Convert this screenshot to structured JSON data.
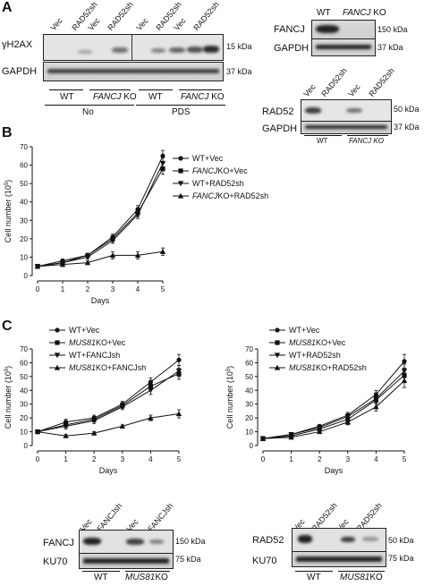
{
  "panels": {
    "a": "A",
    "b": "B",
    "c": "C"
  },
  "panel_a": {
    "blot1": {
      "lanes": [
        "Vec",
        "RAD52sh",
        "Vec",
        "RAD52sh",
        "Vec",
        "RAD52sh",
        "Vec",
        "RAD52sh"
      ],
      "row1_label": "γH2AX",
      "row2_label": "GAPDH",
      "marker1": "15 kDa",
      "marker2": "37 kDa",
      "groups": [
        {
          "wt": "WT",
          "ko_gene": "FANCJ",
          "ko_suffix": " KO",
          "condition": "No"
        },
        {
          "wt": "WT",
          "ko_gene": "FANCJ",
          "ko_suffix": " KO",
          "condition": "PDS"
        }
      ]
    },
    "blot2": {
      "lanes": [
        "WT",
        "FANCJ",
        "KO"
      ],
      "row1_label": "FANCJ",
      "row2_label": "GAPDH",
      "marker1": "150 kDa",
      "marker2": "37 kDa"
    },
    "blot3": {
      "lanes": [
        "Vec",
        "RAD52sh",
        "Vec",
        "RAD52sh"
      ],
      "row1_label": "RAD52",
      "row2_label": "GAPDH",
      "marker1": "50 kDa",
      "marker2": "37 kDa",
      "group_wt": "WT",
      "group_ko": "FANCJ KO"
    }
  },
  "chart_data": [
    {
      "type": "line",
      "panel": "B",
      "xlabel": "Days",
      "ylabel": "Cell number (10",
      "ylabel_exp": "5",
      "ylabel_end": ")",
      "x": [
        0,
        1,
        2,
        3,
        4,
        5
      ],
      "xlim": [
        0,
        5
      ],
      "ylim": [
        0,
        70
      ],
      "yticks": [
        0,
        10,
        20,
        30,
        40,
        50,
        60,
        70
      ],
      "series": [
        {
          "name_italic": "",
          "name": "WT+Vec",
          "marker": "circle",
          "values": [
            5,
            8,
            11,
            21,
            36,
            65
          ],
          "errors": [
            1,
            1,
            1,
            1.5,
            2,
            3
          ]
        },
        {
          "name_italic": "FANCJ",
          "name": "KO+Vec",
          "marker": "square",
          "values": [
            5,
            7,
            11,
            20,
            34,
            58
          ],
          "errors": [
            1,
            1,
            1,
            1.5,
            2,
            3
          ]
        },
        {
          "name_italic": "",
          "name": "WT+RAD52sh",
          "marker": "triangle-down",
          "values": [
            5,
            7,
            10,
            19,
            33,
            61
          ],
          "errors": [
            1,
            1,
            1,
            1.5,
            2,
            3
          ]
        },
        {
          "name_italic": "FANCJ",
          "name": "KO+RAD52sh",
          "marker": "triangle-up",
          "values": [
            5,
            6,
            7,
            11,
            11,
            13
          ],
          "errors": [
            1,
            1,
            1,
            2,
            2,
            2
          ]
        }
      ]
    },
    {
      "type": "line",
      "panel": "C-left",
      "xlabel": "Days",
      "ylabel": "Cell number (10",
      "ylabel_exp": "5",
      "ylabel_end": ")",
      "x": [
        0,
        1,
        2,
        3,
        4,
        5
      ],
      "xlim": [
        0,
        5
      ],
      "ylim": [
        0,
        70
      ],
      "yticks": [
        0,
        10,
        20,
        30,
        40,
        50,
        60,
        70
      ],
      "series": [
        {
          "name_italic": "",
          "name": "WT+Vec",
          "marker": "circle",
          "values": [
            10,
            17,
            20,
            30,
            46,
            62
          ],
          "errors": [
            1,
            2,
            2,
            2,
            3,
            4
          ]
        },
        {
          "name_italic": "MUS81",
          "name": "KO+Vec",
          "marker": "square",
          "values": [
            10,
            15,
            19,
            29,
            43,
            52
          ],
          "errors": [
            1,
            2,
            2,
            2,
            3,
            4
          ]
        },
        {
          "name_italic": "",
          "name": "WT+FANCJsh",
          "marker": "triangle-down",
          "values": [
            10,
            14,
            18,
            28,
            40,
            54
          ],
          "errors": [
            1,
            2,
            2,
            2,
            3,
            4
          ]
        },
        {
          "name_italic": "MUS81",
          "name": "KO+FANCJsh",
          "marker": "triangle-up",
          "values": [
            10,
            7,
            9,
            14,
            20,
            23
          ],
          "errors": [
            1,
            1,
            1,
            1,
            2,
            3
          ]
        }
      ]
    },
    {
      "type": "line",
      "panel": "C-right",
      "xlabel": "Days",
      "ylabel": "Cell number (10",
      "ylabel_exp": "5",
      "ylabel_end": ")",
      "x": [
        0,
        1,
        2,
        3,
        4,
        5
      ],
      "xlim": [
        0,
        5
      ],
      "ylim": [
        0,
        70
      ],
      "yticks": [
        0,
        10,
        20,
        30,
        40,
        50,
        60,
        70
      ],
      "series": [
        {
          "name_italic": "",
          "name": "WT+Vec",
          "marker": "circle",
          "values": [
            5,
            8,
            14,
            22,
            37,
            61
          ],
          "errors": [
            1,
            1,
            1,
            2,
            3,
            5
          ]
        },
        {
          "name_italic": "MUS81",
          "name": "KO+Vec",
          "marker": "square",
          "values": [
            5,
            7,
            12,
            19,
            33,
            51
          ],
          "errors": [
            1,
            1,
            1,
            2,
            3,
            5
          ]
        },
        {
          "name_italic": "",
          "name": "WT+RAD52sh",
          "marker": "triangle-down",
          "values": [
            5,
            8,
            13,
            21,
            34,
            54
          ],
          "errors": [
            1,
            1,
            1,
            2,
            3,
            5
          ]
        },
        {
          "name_italic": "MUS81",
          "name": "KO+RAD52sh",
          "marker": "triangle-up",
          "values": [
            5,
            6,
            10,
            17,
            28,
            47
          ],
          "errors": [
            1,
            1,
            1,
            2,
            3,
            5
          ]
        }
      ]
    }
  ],
  "panel_c_blots": {
    "left": {
      "lanes": [
        "Vec",
        "FANCJsh",
        "Vec",
        "FANCJsh"
      ],
      "row1_label": "FANCJ",
      "row2_label": "KU70",
      "marker1": "150 kDa",
      "marker2": "75 kDa",
      "group_wt": "WT",
      "group_ko_gene": "MUS81",
      "group_ko_suffix": "KO"
    },
    "right": {
      "lanes": [
        "Vec",
        "RAD52sh",
        "Vec",
        "RAD52sh"
      ],
      "row1_label": "RAD52",
      "row2_label": "KU70",
      "marker1": "50 kDa",
      "marker2": "75 kDa",
      "group_wt": "WT",
      "group_ko_gene": "MUS81",
      "group_ko_suffix": "KO"
    }
  }
}
